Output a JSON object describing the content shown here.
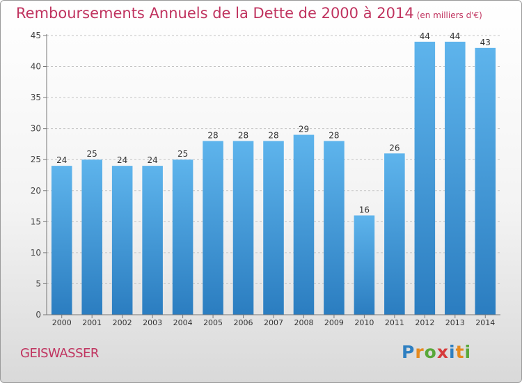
{
  "header": {
    "title": "Remboursements Annuels de la Dette de 2000 à 2014",
    "unit": "(en milliers d'€)"
  },
  "footer": {
    "commune": "GEISWASSER",
    "logo": "Proxiti"
  },
  "colors": {
    "bar_top": "#5eb4ec",
    "bar_bottom": "#2b7dc0",
    "title": "#c0335f",
    "grid": "#c4c4c4"
  },
  "chart_data": {
    "type": "bar",
    "title": "Remboursements Annuels de la Dette de 2000 à 2014",
    "subtitle": "(en milliers d'€)",
    "categories": [
      "2000",
      "2001",
      "2002",
      "2003",
      "2004",
      "2005",
      "2006",
      "2007",
      "2008",
      "2009",
      "2010",
      "2011",
      "2012",
      "2013",
      "2014"
    ],
    "values": [
      24,
      25,
      24,
      24,
      25,
      28,
      28,
      28,
      29,
      28,
      16,
      26,
      44,
      44,
      43
    ],
    "ylim": [
      0,
      45
    ],
    "yticks": [
      0,
      5,
      10,
      15,
      20,
      25,
      30,
      35,
      40,
      45
    ],
    "grid": true,
    "data_labels": true
  }
}
